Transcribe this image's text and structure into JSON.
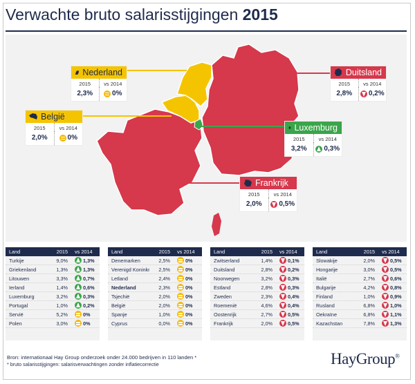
{
  "title": {
    "main": "Verwachte bruto salarisstijgingen",
    "year": "2015"
  },
  "colors": {
    "navy": "#1f2b4d",
    "red": "#d6384c",
    "yellow": "#f5c400",
    "green": "#3aa54a",
    "map_bg": "#f2f2f2"
  },
  "callouts": {
    "nederland": {
      "name": "Nederland",
      "lab_2015": "2015",
      "lab_2014": "vs 2014",
      "v2015": "2,3%",
      "v2014": "0%",
      "trend": "eq"
    },
    "belgie": {
      "name": "België",
      "lab_2015": "2015",
      "lab_2014": "vs 2014",
      "v2015": "2,0%",
      "v2014": "0%",
      "trend": "eq"
    },
    "duitsland": {
      "name": "Duitsland",
      "lab_2015": "2015",
      "lab_2014": "vs 2014",
      "v2015": "2,8%",
      "v2014": "0,2%",
      "trend": "down"
    },
    "luxemburg": {
      "name": "Luxemburg",
      "lab_2015": "2015",
      "lab_2014": "vs 2014",
      "v2015": "3,2%",
      "v2014": "0,3%",
      "trend": "up"
    },
    "frankrijk": {
      "name": "Frankrijk",
      "lab_2015": "2015",
      "lab_2014": "vs 2014",
      "v2015": "2,0%",
      "v2014": "0,5%",
      "trend": "down"
    }
  },
  "table_headers": {
    "land": "Land",
    "y2015": "2015",
    "vs": "vs 2014"
  },
  "tables": [
    [
      {
        "land": "Turkije",
        "y2015": "9,0%",
        "vs": "1,3%",
        "trend": "up"
      },
      {
        "land": "Griekenland",
        "y2015": "1,3%",
        "vs": "1,3%",
        "trend": "up"
      },
      {
        "land": "Litouwen",
        "y2015": "3,3%",
        "vs": "0,7%",
        "trend": "up"
      },
      {
        "land": "Ierland",
        "y2015": "1,4%",
        "vs": "0,6%",
        "trend": "up"
      },
      {
        "land": "Luxemburg",
        "y2015": "3,2%",
        "vs": "0,3%",
        "trend": "up"
      },
      {
        "land": "Portugal",
        "y2015": "1,0%",
        "vs": "0,2%",
        "trend": "up"
      },
      {
        "land": "Servië",
        "y2015": "5,2%",
        "vs": "0%",
        "trend": "eq"
      },
      {
        "land": "Polen",
        "y2015": "3,0%",
        "vs": "0%",
        "trend": "eq"
      }
    ],
    [
      {
        "land": "Denemarken",
        "y2015": "2,5%",
        "vs": "0%",
        "trend": "eq"
      },
      {
        "land": "Verenigd Koninkrijk",
        "y2015": "2,5%",
        "vs": "0%",
        "trend": "eq"
      },
      {
        "land": "Letland",
        "y2015": "2,4%",
        "vs": "0%",
        "trend": "eq"
      },
      {
        "land": "Nederland",
        "y2015": "2,3%",
        "vs": "0%",
        "trend": "eq",
        "highlight": true
      },
      {
        "land": "Tsjechië",
        "y2015": "2,0%",
        "vs": "0%",
        "trend": "eq"
      },
      {
        "land": "België",
        "y2015": "2,0%",
        "vs": "0%",
        "trend": "eq"
      },
      {
        "land": "Spanje",
        "y2015": "1,0%",
        "vs": "0%",
        "trend": "eq"
      },
      {
        "land": "Cyprus",
        "y2015": "0,0%",
        "vs": "0%",
        "trend": "eq"
      }
    ],
    [
      {
        "land": "Zwitserland",
        "y2015": "1,4%",
        "vs": "0,1%",
        "trend": "down"
      },
      {
        "land": "Duitsland",
        "y2015": "2,8%",
        "vs": "0,2%",
        "trend": "down"
      },
      {
        "land": "Noorwegen",
        "y2015": "3,2%",
        "vs": "0,3%",
        "trend": "down"
      },
      {
        "land": "Estland",
        "y2015": "2,8%",
        "vs": "0,3%",
        "trend": "down"
      },
      {
        "land": "Zweden",
        "y2015": "2,3%",
        "vs": "0,4%",
        "trend": "down"
      },
      {
        "land": "Roemenië",
        "y2015": "4,6%",
        "vs": "0,4%",
        "trend": "down"
      },
      {
        "land": "Oostenrijk",
        "y2015": "2,7%",
        "vs": "0,5%",
        "trend": "down"
      },
      {
        "land": "Frankrijk",
        "y2015": "2,0%",
        "vs": "0,5%",
        "trend": "down"
      }
    ],
    [
      {
        "land": "Slowakije",
        "y2015": "2,0%",
        "vs": "0,5%",
        "trend": "down"
      },
      {
        "land": "Hongarije",
        "y2015": "3,0%",
        "vs": "0,5%",
        "trend": "down"
      },
      {
        "land": "Italië",
        "y2015": "2,7%",
        "vs": "0,6%",
        "trend": "down"
      },
      {
        "land": "Bulgarije",
        "y2015": "4,2%",
        "vs": "0,8%",
        "trend": "down"
      },
      {
        "land": "Finland",
        "y2015": "1,0%",
        "vs": "0,9%",
        "trend": "down"
      },
      {
        "land": "Rusland",
        "y2015": "6,8%",
        "vs": "1,0%",
        "trend": "down"
      },
      {
        "land": "Oekraïne",
        "y2015": "6,8%",
        "vs": "1,1%",
        "trend": "down"
      },
      {
        "land": "Kazachstan",
        "y2015": "7,8%",
        "vs": "1,3%",
        "trend": "down"
      }
    ]
  ],
  "footer": {
    "source": "Bron: internationaal Hay Group onderzoek onder 24.000 bedrijven in 110 landen *",
    "note": "* bruto salarisstijgingen: salarisverwachtingen zonder inflatiecorrectie",
    "logo": "HayGroup",
    "logo_mark": "®"
  }
}
